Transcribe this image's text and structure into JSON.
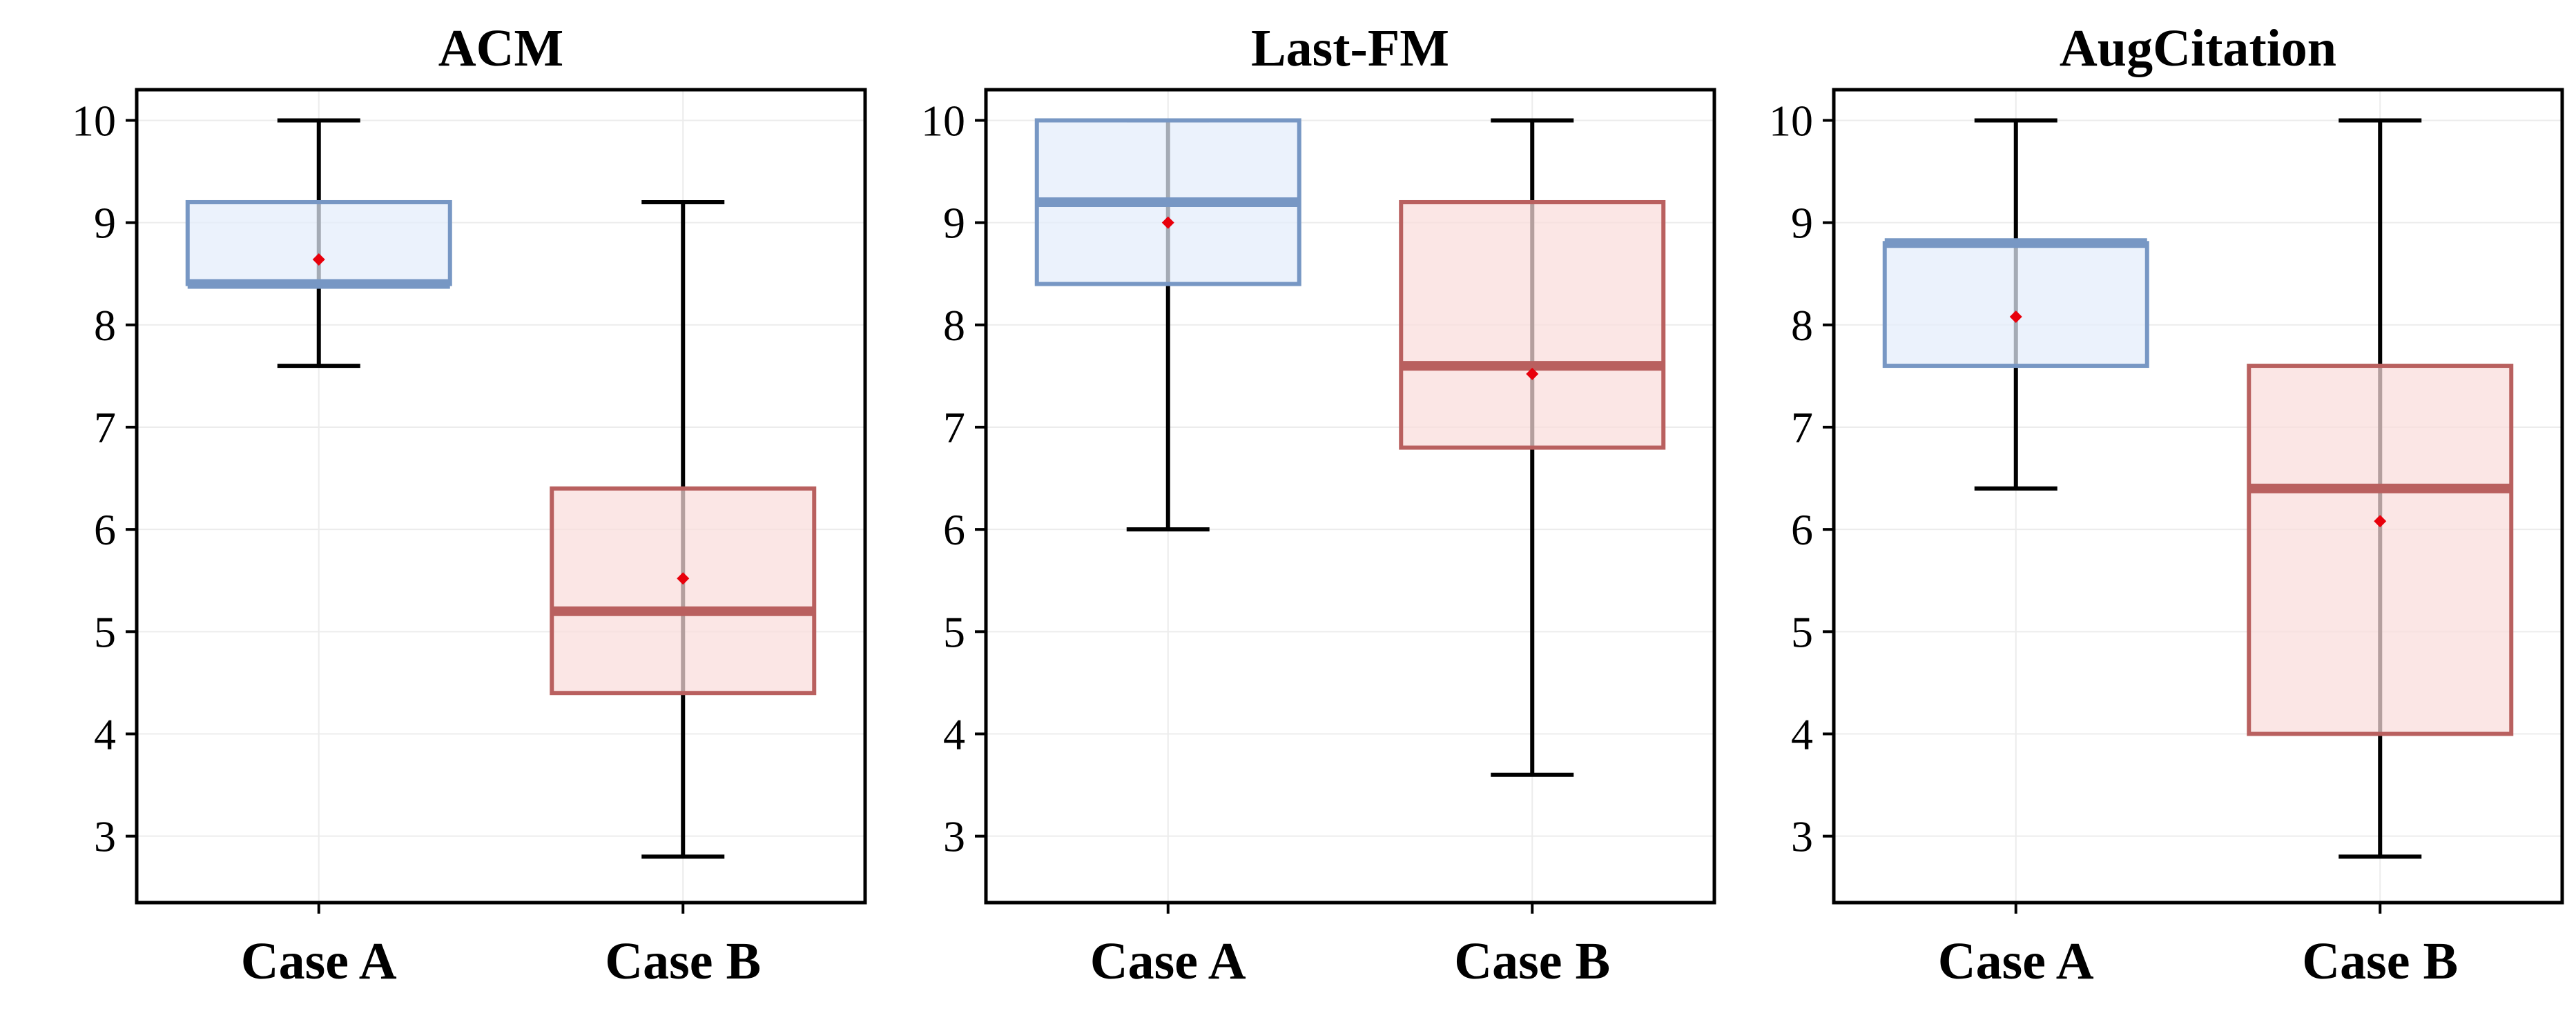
{
  "colors": {
    "case_a_fill": "#e3edfb",
    "case_a_stroke": "#7797c4",
    "case_b_fill": "#f9dcdb",
    "case_b_stroke": "#b9605f",
    "mean_marker": "#e8000b",
    "whisker": "#000000",
    "grid": "#ececec"
  },
  "chart_data": [
    {
      "type": "box",
      "title": "ACM",
      "categories": [
        "Case A",
        "Case B"
      ],
      "y_ticks": [
        "10",
        "9",
        "8",
        "7",
        "6",
        "5",
        "4",
        "3"
      ],
      "ylim": [
        2.35,
        10.3
      ],
      "grid": true,
      "boxes": [
        {
          "category": "Case A",
          "min": 7.6,
          "q1": 8.4,
          "median": 8.4,
          "q3": 9.2,
          "max": 10,
          "mean": 8.64
        },
        {
          "category": "Case B",
          "min": 2.8,
          "q1": 4.4,
          "median": 5.2,
          "q3": 6.4,
          "max": 9.2,
          "mean": 5.52
        }
      ]
    },
    {
      "type": "box",
      "title": "Last-FM",
      "categories": [
        "Case A",
        "Case B"
      ],
      "y_ticks": [
        "10",
        "9",
        "8",
        "7",
        "6",
        "5",
        "4",
        "3"
      ],
      "ylim": [
        2.35,
        10.3
      ],
      "grid": true,
      "boxes": [
        {
          "category": "Case A",
          "min": 6.0,
          "q1": 8.4,
          "median": 9.2,
          "q3": 10,
          "max": 10,
          "mean": 9.0
        },
        {
          "category": "Case B",
          "min": 3.6,
          "q1": 6.8,
          "median": 7.6,
          "q3": 9.2,
          "max": 10,
          "mean": 7.52
        }
      ]
    },
    {
      "type": "box",
      "title": "AugCitation",
      "categories": [
        "Case A",
        "Case B"
      ],
      "y_ticks": [
        "10",
        "9",
        "8",
        "7",
        "6",
        "5",
        "4",
        "3"
      ],
      "ylim": [
        2.35,
        10.3
      ],
      "grid": true,
      "boxes": [
        {
          "category": "Case A",
          "min": 6.4,
          "q1": 7.6,
          "median": 8.8,
          "q3": 8.8,
          "max": 10,
          "mean": 8.08
        },
        {
          "category": "Case B",
          "min": 2.8,
          "q1": 4.0,
          "median": 6.4,
          "q3": 7.6,
          "max": 10,
          "mean": 6.08
        }
      ]
    }
  ]
}
